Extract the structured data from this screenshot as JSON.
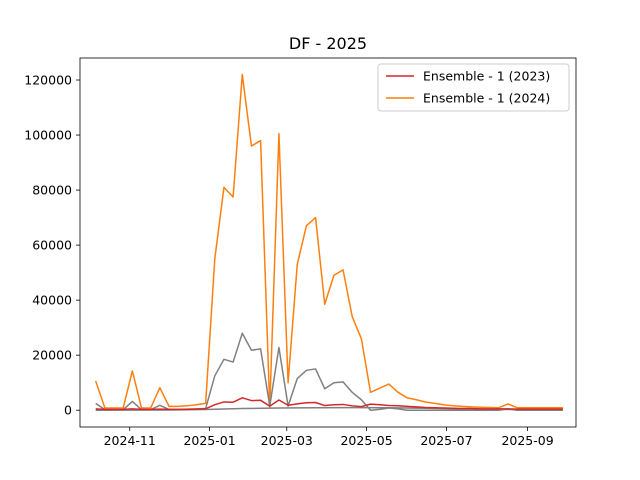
{
  "chart_data": {
    "type": "line",
    "title": "DF - 2025",
    "xlabel": "",
    "ylabel": "",
    "x_axis_type": "date",
    "x_range": [
      "2024-09-24",
      "2025-10-08"
    ],
    "ylim": [
      -6100,
      128000
    ],
    "grid": false,
    "legend_position": "top-right",
    "x_ticks": [
      "2024-11",
      "2025-01",
      "2025-03",
      "2025-05",
      "2025-07",
      "2025-09"
    ],
    "x_tick_values": [
      "2024-11-01",
      "2025-01-01",
      "2025-03-01",
      "2025-05-01",
      "2025-07-01",
      "2025-09-01"
    ],
    "y_ticks": [
      "0",
      "20000",
      "40000",
      "60000",
      "80000",
      "100000",
      "120000"
    ],
    "y_tick_values": [
      0,
      20000,
      40000,
      60000,
      80000,
      100000,
      120000
    ],
    "series": [
      {
        "name": "Ensemble - 1 (2024)",
        "color": "#ff7f0e",
        "in_legend": true,
        "points": [
          [
            "2024-10-06",
            10600
          ],
          [
            "2024-10-13",
            800
          ],
          [
            "2024-10-20",
            800
          ],
          [
            "2024-10-27",
            800
          ],
          [
            "2024-11-03",
            14300
          ],
          [
            "2024-11-10",
            800
          ],
          [
            "2024-11-17",
            800
          ],
          [
            "2024-11-24",
            8200
          ],
          [
            "2024-12-01",
            1400
          ],
          [
            "2024-12-08",
            1400
          ],
          [
            "2024-12-15",
            1600
          ],
          [
            "2024-12-22",
            2000
          ],
          [
            "2024-12-29",
            2500
          ],
          [
            "2025-01-05",
            55000
          ],
          [
            "2025-01-12",
            81000
          ],
          [
            "2025-01-19",
            77500
          ],
          [
            "2025-01-26",
            122000
          ],
          [
            "2025-02-02",
            96000
          ],
          [
            "2025-02-09",
            98000
          ],
          [
            "2025-02-16",
            1000
          ],
          [
            "2025-02-23",
            100500
          ],
          [
            "2025-03-02",
            10000
          ],
          [
            "2025-03-09",
            53000
          ],
          [
            "2025-03-16",
            67000
          ],
          [
            "2025-03-23",
            70000
          ],
          [
            "2025-03-30",
            38500
          ],
          [
            "2025-04-06",
            49000
          ],
          [
            "2025-04-13",
            51000
          ],
          [
            "2025-04-20",
            34000
          ],
          [
            "2025-04-27",
            26000
          ],
          [
            "2025-05-04",
            6500
          ],
          [
            "2025-05-11",
            8000
          ],
          [
            "2025-05-18",
            9500
          ],
          [
            "2025-05-25",
            6500
          ],
          [
            "2025-06-01",
            4500
          ],
          [
            "2025-06-08",
            3800
          ],
          [
            "2025-06-15",
            3000
          ],
          [
            "2025-06-22",
            2500
          ],
          [
            "2025-06-29",
            2000
          ],
          [
            "2025-07-06",
            1600
          ],
          [
            "2025-07-13",
            1400
          ],
          [
            "2025-07-20",
            1200
          ],
          [
            "2025-07-27",
            1100
          ],
          [
            "2025-08-03",
            1000
          ],
          [
            "2025-08-10",
            900
          ],
          [
            "2025-08-17",
            2300
          ],
          [
            "2025-08-24",
            900
          ],
          [
            "2025-08-31",
            900
          ],
          [
            "2025-09-07",
            900
          ],
          [
            "2025-09-14",
            900
          ],
          [
            "2025-09-21",
            900
          ],
          [
            "2025-09-28",
            900
          ]
        ]
      },
      {
        "name": "",
        "color": "#808080",
        "in_legend": false,
        "points": [
          [
            "2024-10-06",
            2500
          ],
          [
            "2024-10-13",
            200
          ],
          [
            "2024-10-20",
            200
          ],
          [
            "2024-10-27",
            200
          ],
          [
            "2024-11-03",
            3200
          ],
          [
            "2024-11-10",
            200
          ],
          [
            "2024-11-17",
            200
          ],
          [
            "2024-11-24",
            1800
          ],
          [
            "2024-12-01",
            300
          ],
          [
            "2024-12-08",
            300
          ],
          [
            "2024-12-15",
            400
          ],
          [
            "2024-12-22",
            500
          ],
          [
            "2024-12-29",
            600
          ],
          [
            "2025-01-05",
            12500
          ],
          [
            "2025-01-12",
            18500
          ],
          [
            "2025-01-19",
            17500
          ],
          [
            "2025-01-26",
            28000
          ],
          [
            "2025-02-02",
            21800
          ],
          [
            "2025-02-09",
            22300
          ],
          [
            "2025-02-16",
            1500
          ],
          [
            "2025-02-23",
            22800
          ],
          [
            "2025-03-02",
            1500
          ],
          [
            "2025-03-09",
            11500
          ],
          [
            "2025-03-16",
            14500
          ],
          [
            "2025-03-23",
            15000
          ],
          [
            "2025-03-30",
            7800
          ],
          [
            "2025-04-06",
            10000
          ],
          [
            "2025-04-13",
            10300
          ],
          [
            "2025-04-20",
            6500
          ],
          [
            "2025-04-27",
            3800
          ],
          [
            "2025-05-04",
            0
          ],
          [
            "2025-05-11",
            300
          ],
          [
            "2025-05-18",
            800
          ],
          [
            "2025-05-25",
            500
          ],
          [
            "2025-06-01",
            0
          ],
          [
            "2025-06-08",
            0
          ],
          [
            "2025-06-15",
            0
          ],
          [
            "2025-06-22",
            0
          ],
          [
            "2025-06-29",
            0
          ],
          [
            "2025-07-06",
            0
          ],
          [
            "2025-07-13",
            0
          ],
          [
            "2025-07-20",
            0
          ],
          [
            "2025-07-27",
            0
          ],
          [
            "2025-08-03",
            0
          ],
          [
            "2025-08-10",
            0
          ],
          [
            "2025-08-17",
            500
          ],
          [
            "2025-08-24",
            0
          ],
          [
            "2025-08-31",
            0
          ],
          [
            "2025-09-07",
            0
          ],
          [
            "2025-09-14",
            0
          ],
          [
            "2025-09-21",
            0
          ],
          [
            "2025-09-28",
            0
          ]
        ]
      },
      {
        "name": "",
        "color": "#808080",
        "in_legend": false,
        "points": [
          [
            "2024-10-06",
            0
          ],
          [
            "2024-11-03",
            50
          ],
          [
            "2024-12-01",
            100
          ],
          [
            "2024-12-29",
            250
          ],
          [
            "2025-01-26",
            600
          ],
          [
            "2025-02-23",
            800
          ],
          [
            "2025-03-23",
            900
          ],
          [
            "2025-04-20",
            950
          ],
          [
            "2025-05-18",
            900
          ],
          [
            "2025-06-15",
            700
          ],
          [
            "2025-07-13",
            500
          ],
          [
            "2025-08-10",
            300
          ],
          [
            "2025-09-07",
            200
          ],
          [
            "2025-09-28",
            150
          ]
        ]
      },
      {
        "name": "Ensemble - 1 (2023)",
        "color": "#d62728",
        "in_legend": true,
        "points": [
          [
            "2024-10-06",
            500
          ],
          [
            "2024-10-13",
            300
          ],
          [
            "2024-10-20",
            300
          ],
          [
            "2024-10-27",
            300
          ],
          [
            "2024-11-03",
            500
          ],
          [
            "2024-11-10",
            300
          ],
          [
            "2024-11-17",
            300
          ],
          [
            "2024-11-24",
            400
          ],
          [
            "2024-12-01",
            300
          ],
          [
            "2024-12-08",
            300
          ],
          [
            "2024-12-15",
            300
          ],
          [
            "2024-12-22",
            400
          ],
          [
            "2024-12-29",
            500
          ],
          [
            "2025-01-05",
            2000
          ],
          [
            "2025-01-12",
            3000
          ],
          [
            "2025-01-19",
            2900
          ],
          [
            "2025-01-26",
            4500
          ],
          [
            "2025-02-02",
            3500
          ],
          [
            "2025-02-09",
            3600
          ],
          [
            "2025-02-16",
            1500
          ],
          [
            "2025-02-23",
            3700
          ],
          [
            "2025-03-02",
            1800
          ],
          [
            "2025-03-09",
            2300
          ],
          [
            "2025-03-16",
            2700
          ],
          [
            "2025-03-23",
            2800
          ],
          [
            "2025-03-30",
            1700
          ],
          [
            "2025-04-06",
            2000
          ],
          [
            "2025-04-13",
            2100
          ],
          [
            "2025-04-20",
            1600
          ],
          [
            "2025-04-27",
            1300
          ],
          [
            "2025-05-04",
            2200
          ],
          [
            "2025-05-11",
            2000
          ],
          [
            "2025-05-18",
            1700
          ],
          [
            "2025-05-25",
            1600
          ],
          [
            "2025-06-01",
            1400
          ],
          [
            "2025-06-08",
            1200
          ],
          [
            "2025-06-15",
            1000
          ],
          [
            "2025-06-22",
            900
          ],
          [
            "2025-06-29",
            800
          ],
          [
            "2025-07-06",
            700
          ],
          [
            "2025-07-13",
            600
          ],
          [
            "2025-07-20",
            600
          ],
          [
            "2025-07-27",
            500
          ],
          [
            "2025-08-03",
            500
          ],
          [
            "2025-08-10",
            500
          ],
          [
            "2025-08-17",
            500
          ],
          [
            "2025-08-24",
            400
          ],
          [
            "2025-08-31",
            400
          ],
          [
            "2025-09-07",
            400
          ],
          [
            "2025-09-14",
            400
          ],
          [
            "2025-09-21",
            400
          ],
          [
            "2025-09-28",
            400
          ]
        ]
      }
    ],
    "legend": [
      {
        "label": "Ensemble - 1 (2023)",
        "color": "#d62728"
      },
      {
        "label": "Ensemble - 1 (2024)",
        "color": "#ff7f0e"
      }
    ]
  }
}
